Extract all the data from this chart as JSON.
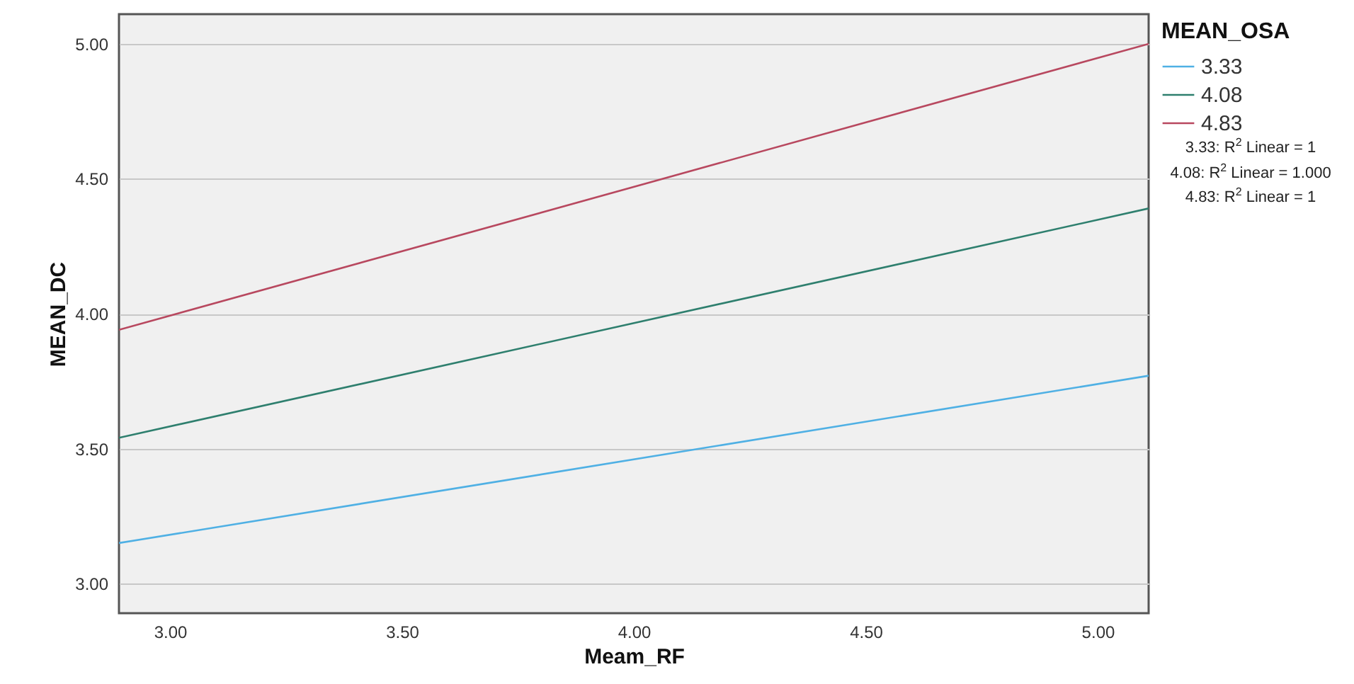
{
  "chart_data": {
    "type": "line",
    "xlabel": "Meam_RF",
    "ylabel": "MEAN_DC",
    "legend_title": "MEAN_OSA",
    "x": [
      2.89,
      5.11
    ],
    "series": [
      {
        "name": "3.33",
        "color": "#4fb0e4",
        "values": [
          3.15,
          3.77
        ]
      },
      {
        "name": "4.08",
        "color": "#2e7f6e",
        "values": [
          3.54,
          4.39
        ]
      },
      {
        "name": "4.83",
        "color": "#b8485f",
        "values": [
          3.94,
          5.0
        ]
      }
    ],
    "xlim": [
      2.89,
      5.11
    ],
    "xticks": [
      {
        "value": 3,
        "label": "3.00"
      },
      {
        "value": 3.5,
        "label": "3.50"
      },
      {
        "value": 4,
        "label": "4.00"
      },
      {
        "value": 4.5,
        "label": "4.50"
      },
      {
        "value": 5,
        "label": "5.00"
      }
    ],
    "ylim": [
      2.89,
      5.11
    ],
    "yticks": [
      {
        "value": 3,
        "label": "3.00"
      },
      {
        "value": 3.5,
        "label": "3.50"
      },
      {
        "value": 4,
        "label": "4.00"
      },
      {
        "value": 4.5,
        "label": "4.50"
      },
      {
        "value": 5,
        "label": "5.00"
      }
    ],
    "grid": "y",
    "legend": "top right",
    "marker": "none",
    "line_style": "solid",
    "annotations": [
      "3.33: R$^{2}$ Linear = 1",
      "4.08: R$^{2}$ Linear = 1.000",
      "4.83: R$^{2}$ Linear = 1"
    ]
  }
}
